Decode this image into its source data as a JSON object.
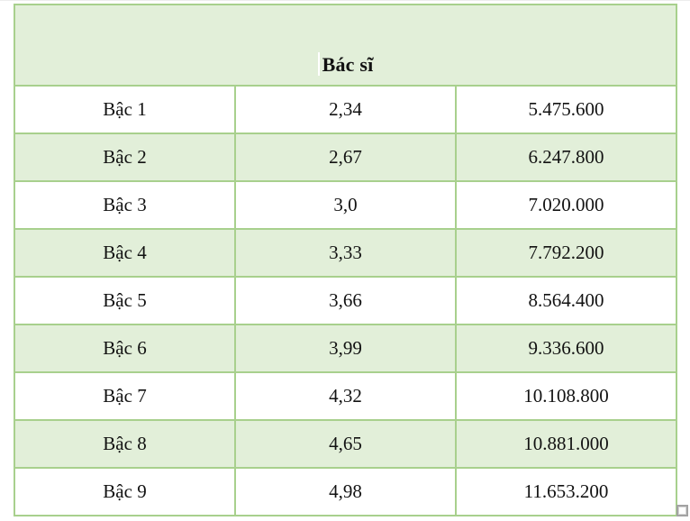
{
  "table": {
    "title": "Bác sĩ",
    "rows": [
      {
        "level": "Bậc 1",
        "coefficient": "2,34",
        "salary": "5.475.600"
      },
      {
        "level": "Bậc 2",
        "coefficient": "2,67",
        "salary": "6.247.800"
      },
      {
        "level": "Bậc 3",
        "coefficient": "3,0",
        "salary": "7.020.000"
      },
      {
        "level": "Bậc 4",
        "coefficient": "3,33",
        "salary": "7.792.200"
      },
      {
        "level": "Bậc 5",
        "coefficient": "3,66",
        "salary": "8.564.400"
      },
      {
        "level": "Bậc 6",
        "coefficient": "3,99",
        "salary": "9.336.600"
      },
      {
        "level": "Bậc 7",
        "coefficient": "4,32",
        "salary": "10.108.800"
      },
      {
        "level": "Bậc 8",
        "coefficient": "4,65",
        "salary": "10.881.000"
      },
      {
        "level": "Bậc 9",
        "coefficient": "4,98",
        "salary": "11.653.200"
      }
    ],
    "colors": {
      "header_bg": "#e2efd9",
      "row_alt_bg": "#e2efd9",
      "row_bg": "#ffffff",
      "border": "#a8d08d",
      "text": "#121212"
    }
  },
  "icons": {
    "table_resize_handle": "small-square",
    "text_cursor": "vertical-bar"
  }
}
